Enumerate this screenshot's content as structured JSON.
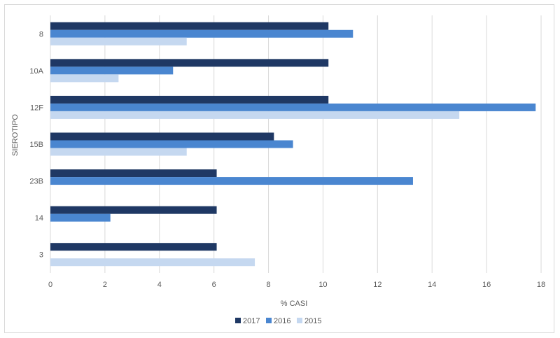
{
  "chart_data": {
    "type": "bar",
    "orientation": "horizontal",
    "title": "",
    "xlabel": "% CASI",
    "ylabel": "SIEROTIPO",
    "categories": [
      "8",
      "10A",
      "12F",
      "15B",
      "23B",
      "14",
      "3"
    ],
    "series": [
      {
        "name": "2017",
        "color": "#1f3864",
        "values": [
          10.2,
          10.2,
          10.2,
          8.2,
          6.1,
          6.1,
          6.1
        ]
      },
      {
        "name": "2016",
        "color": "#4a86d0",
        "values": [
          11.1,
          4.5,
          17.8,
          8.9,
          13.3,
          2.2,
          null
        ]
      },
      {
        "name": "2015",
        "color": "#c5d8f0",
        "values": [
          5.0,
          2.5,
          15.0,
          5.0,
          null,
          null,
          7.5
        ]
      }
    ],
    "xlim": [
      0,
      18
    ],
    "xticks": [
      "0",
      "2",
      "4",
      "6",
      "8",
      "10",
      "12",
      "14",
      "16",
      "18"
    ],
    "grid": "vertical",
    "legend_position": "bottom"
  }
}
